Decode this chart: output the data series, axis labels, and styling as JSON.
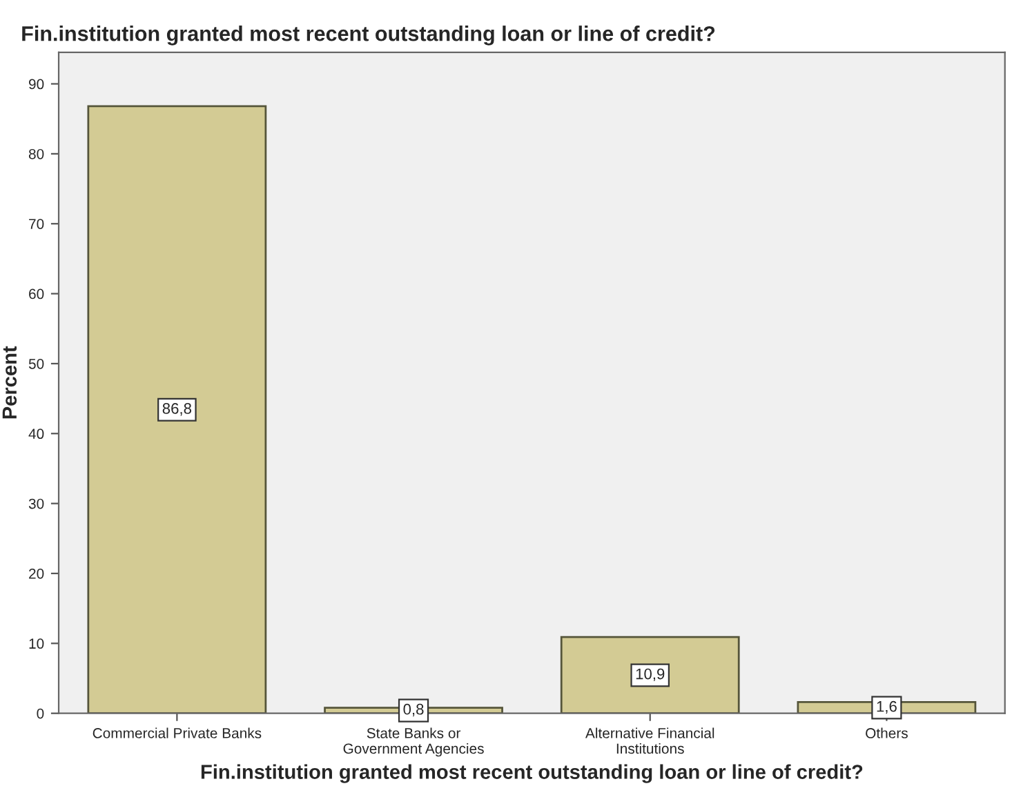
{
  "chart_data": {
    "type": "bar",
    "title": "Fin.institution granted most recent outstanding loan or line of credit?",
    "xlabel": "Fin.institution granted most recent outstanding loan or line of credit?",
    "ylabel": "Percent",
    "categories": [
      "Commercial Private Banks",
      "State Banks or\nGovernment Agencies",
      "Alternative Financial\nInstitutions",
      "Others"
    ],
    "values": [
      86.8,
      0.8,
      10.9,
      1.6
    ],
    "value_labels": [
      "86,8",
      "0,8",
      "10,9",
      "1,6"
    ],
    "color": "#d3cb94",
    "ylim": [
      0,
      94.5
    ],
    "yticks": [
      0,
      10,
      20,
      30,
      40,
      50,
      60,
      70,
      80,
      90
    ],
    "grid": false,
    "legend": false
  }
}
